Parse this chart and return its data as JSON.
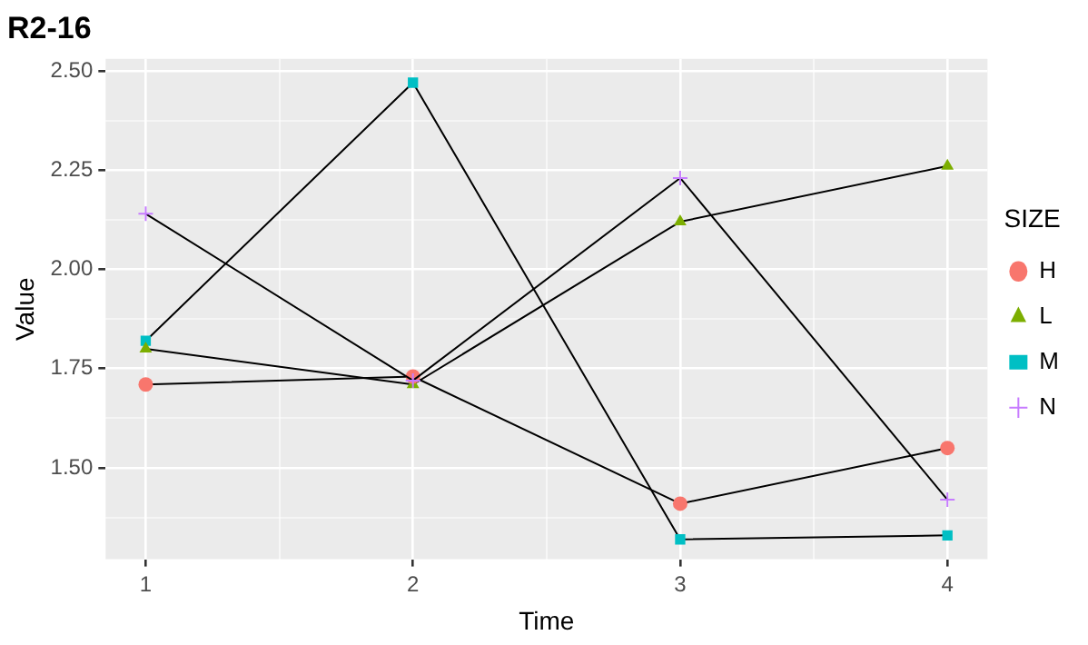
{
  "chart_data": {
    "type": "line",
    "title": "R2-16",
    "xlabel": "Time",
    "ylabel": "Value",
    "legend_title": "SIZE",
    "legend": "right",
    "grid": true,
    "x": [
      1,
      2,
      3,
      4
    ],
    "xlim": [
      0.85,
      4.15
    ],
    "xticks": [
      1,
      {
        "value": 1.5,
        "label": null
      },
      2,
      {
        "value": 2.5,
        "label": null
      },
      3,
      {
        "value": 3.5,
        "label": null
      },
      4
    ],
    "ylim": [
      1.27,
      2.53
    ],
    "yticks": [
      {
        "value": 1.375,
        "label": null
      },
      {
        "value": 1.5,
        "label": "1.50"
      },
      {
        "value": 1.625,
        "label": null
      },
      {
        "value": 1.75,
        "label": "1.75"
      },
      {
        "value": 1.875,
        "label": null
      },
      {
        "value": 2.0,
        "label": "2.00"
      },
      {
        "value": 2.125,
        "label": null
      },
      {
        "value": 2.25,
        "label": "2.25"
      },
      {
        "value": 2.375,
        "label": null
      },
      {
        "value": 2.5,
        "label": "2.50"
      }
    ],
    "series": [
      {
        "name": "H",
        "color": "#f8766d",
        "marker": "circle",
        "values": [
          1.71,
          1.73,
          1.41,
          1.55
        ]
      },
      {
        "name": "L",
        "color": "#7cae00",
        "marker": "triangle",
        "values": [
          1.8,
          1.71,
          2.12,
          2.26
        ]
      },
      {
        "name": "M",
        "color": "#00bfc4",
        "marker": "square",
        "values": [
          1.82,
          2.47,
          1.32,
          1.33
        ]
      },
      {
        "name": "N",
        "color": "#c77cff",
        "marker": "cross",
        "values": [
          2.14,
          1.72,
          2.23,
          1.42
        ]
      }
    ]
  }
}
